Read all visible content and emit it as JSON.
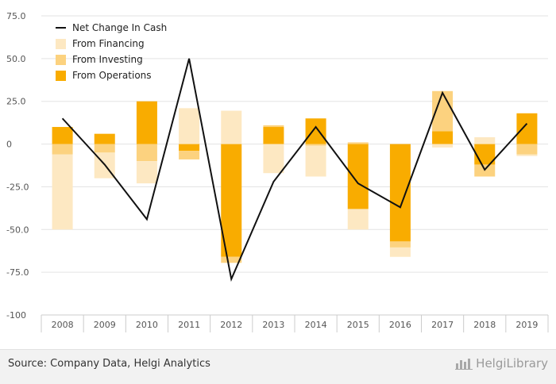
{
  "colors": {
    "net_change": "#111111",
    "financing": "#fde8c2",
    "investing": "#fcd27f",
    "operations": "#f9ac00",
    "grid": "#e3e3e3",
    "axis": "#cccccc"
  },
  "chart_data": {
    "type": "bar",
    "stacked": true,
    "categories": [
      "2008",
      "2009",
      "2010",
      "2011",
      "2012",
      "2013",
      "2014",
      "2015",
      "2016",
      "2017",
      "2018",
      "2019"
    ],
    "series": [
      {
        "name": "From Operations",
        "type": "bar",
        "values": [
          10,
          6,
          25,
          -4,
          -66,
          10,
          15,
          -38,
          -57,
          7.5,
          -12,
          18
        ]
      },
      {
        "name": "From Investing",
        "type": "bar",
        "values": [
          -6,
          -5,
          -10,
          -5,
          -3.5,
          1,
          -1,
          1,
          -3.5,
          23.5,
          -7,
          -6
        ]
      },
      {
        "name": "From Financing",
        "type": "bar",
        "values": [
          -44,
          -15,
          -13,
          21,
          19.5,
          -17,
          -18,
          -12,
          -5.5,
          -2,
          4,
          -1
        ]
      },
      {
        "name": "Net Change In Cash",
        "type": "line",
        "values": [
          15,
          -12,
          -44,
          50,
          -79,
          -22,
          10,
          -23,
          -37,
          30,
          -15,
          12
        ]
      }
    ],
    "yticks": [
      "75.0",
      "50.0",
      "25.0",
      "0",
      "-25.0",
      "-50.0",
      "-75.0",
      "-100"
    ],
    "ylim": [
      -100,
      75
    ],
    "grid": "horizontal",
    "legend_position": "top-left"
  },
  "legend": [
    {
      "label": "Net Change In Cash",
      "kind": "line",
      "color": "#111111"
    },
    {
      "label": "From Financing",
      "kind": "box",
      "color": "#fde8c2"
    },
    {
      "label": "From Investing",
      "kind": "box",
      "color": "#fcd27f"
    },
    {
      "label": "From Operations",
      "kind": "box",
      "color": "#f9ac00"
    }
  ],
  "footer": {
    "source": "Source: Company Data, Helgi Analytics",
    "brand": "HelgiLibrary",
    "brand_icon": "helgi-logo-icon"
  }
}
